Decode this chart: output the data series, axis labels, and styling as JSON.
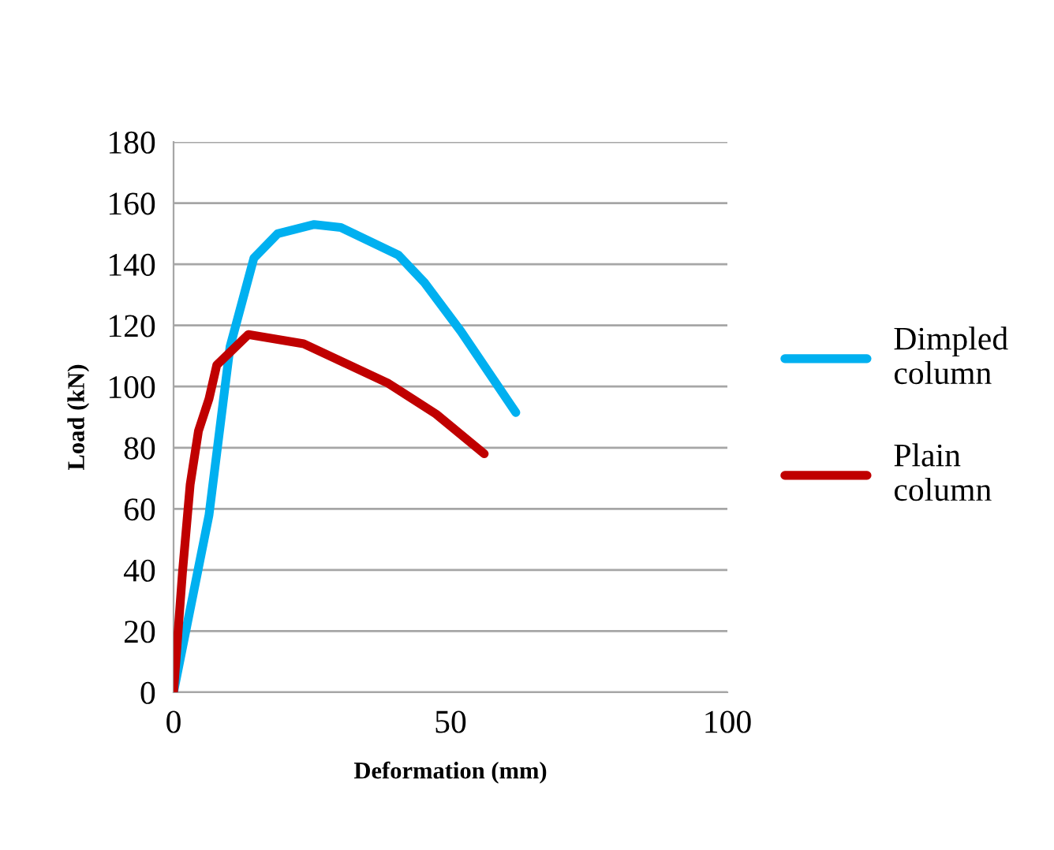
{
  "chart_data": {
    "type": "line",
    "xlabel": "Deformation (mm)",
    "ylabel": "Load (kN)",
    "xlim": [
      0,
      100
    ],
    "xticks": [
      0,
      50,
      100
    ],
    "ylim": [
      0,
      180
    ],
    "yticks": [
      0,
      20,
      40,
      60,
      80,
      100,
      120,
      140,
      160,
      180
    ],
    "grid": "y",
    "legend": "right",
    "marker": "none",
    "line_style": "solid",
    "series": [
      {
        "name": "Dimpled\ncolumn",
        "color": "#00b0f0",
        "x": [
          0,
          6.4,
          10.2,
          14.5,
          18.8,
          25.4,
          30.2,
          40.6,
          45.3,
          51.9,
          61.8
        ],
        "values": [
          0,
          58,
          113,
          142,
          150,
          153,
          152,
          143,
          134,
          118,
          91.5
        ]
      },
      {
        "name": "Plain\ncolumn",
        "color": "#c00000",
        "x": [
          0,
          1.6,
          3,
          4.5,
          6.4,
          7.8,
          13.5,
          23.5,
          38.8,
          47.4,
          56.1
        ],
        "values": [
          0,
          39,
          68,
          85.5,
          96,
          107,
          117,
          114,
          101,
          91,
          78
        ]
      }
    ]
  }
}
